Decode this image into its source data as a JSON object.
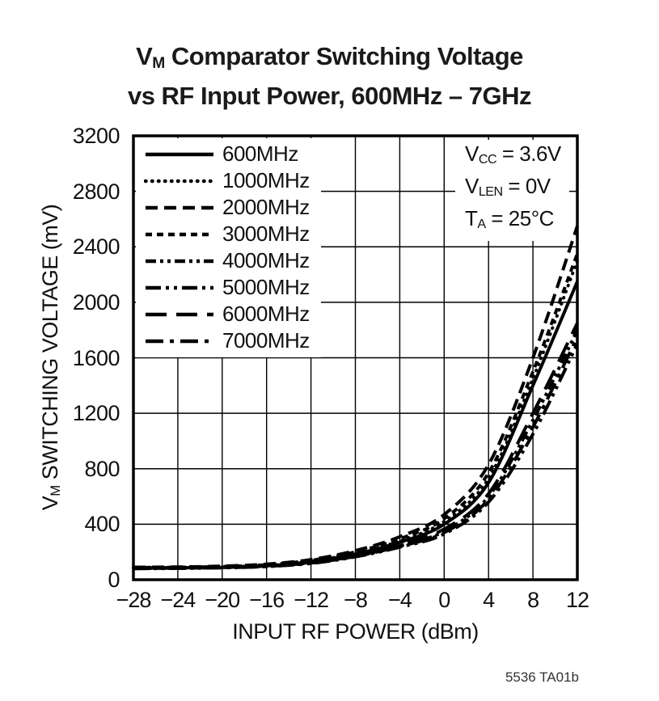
{
  "page": {
    "background": "#ffffff",
    "footer": "5536 TA01b"
  },
  "title": {
    "line1_base": "V",
    "line1_sub": "M",
    "line1_rest": " Comparator Switching Voltage",
    "line2": "vs RF Input Power, 600MHz – 7GHz"
  },
  "axes": {
    "y_label_base": "V",
    "y_label_sub": "M",
    "y_label_rest": " SWITCHING VOLTAGE (mV)",
    "x_label": "INPUT RF POWER (dBm)"
  },
  "annotations": [
    {
      "base": "V",
      "sub": "CC",
      "rest": " = 3.6V"
    },
    {
      "base": "V",
      "sub": "LEN",
      "rest": " = 0V"
    },
    {
      "base": "T",
      "sub": "A",
      "rest": " = 25°C"
    }
  ],
  "colors": {
    "ink": "#111111",
    "line": "#000000",
    "grid": "#000000"
  },
  "chart_data": {
    "type": "line",
    "title": "VM Comparator Switching Voltage vs RF Input Power, 600MHz – 7GHz",
    "xlabel": "INPUT RF POWER (dBm)",
    "ylabel": "VM SWITCHING VOLTAGE (mV)",
    "xlim": [
      -28,
      12
    ],
    "ylim": [
      0,
      3200
    ],
    "grid": true,
    "legend_position": "top-left-inside",
    "x_ticks": [
      -28,
      -24,
      -20,
      -16,
      -12,
      -8,
      -4,
      0,
      4,
      8,
      12
    ],
    "x_tick_labels": [
      "−28",
      "−24",
      "−20",
      "−16",
      "−12",
      "−8",
      "−4",
      "0",
      "4",
      "8",
      "12"
    ],
    "y_ticks": [
      0,
      400,
      800,
      1200,
      1600,
      2000,
      2400,
      2800,
      3200
    ],
    "y_tick_labels": [
      "0",
      "400",
      "800",
      "1200",
      "1600",
      "2000",
      "2400",
      "2800",
      "3200"
    ],
    "x": [
      -28,
      -24,
      -20,
      -16,
      -12,
      -8,
      -4,
      0,
      4,
      8,
      12
    ],
    "series": [
      {
        "name": "600MHz",
        "dash": "",
        "linecap": "butt",
        "values": [
          85,
          86,
          90,
          100,
          130,
          185,
          270,
          400,
          700,
          1400,
          2150
        ]
      },
      {
        "name": "1000MHz",
        "dash": "0.5 7.5",
        "linecap": "round",
        "values": [
          86,
          88,
          92,
          105,
          135,
          190,
          280,
          420,
          730,
          1450,
          2300
        ]
      },
      {
        "name": "2000MHz",
        "dash": "15 8",
        "linecap": "butt",
        "values": [
          90,
          92,
          98,
          112,
          145,
          210,
          310,
          470,
          830,
          1600,
          2550
        ]
      },
      {
        "name": "3000MHz",
        "dash": "8 6",
        "linecap": "butt",
        "values": [
          88,
          90,
          95,
          108,
          140,
          200,
          295,
          440,
          770,
          1500,
          2350
        ]
      },
      {
        "name": "4000MHz",
        "dash": "13 5 4 5 4 5",
        "linecap": "butt",
        "values": [
          82,
          84,
          88,
          98,
          122,
          170,
          245,
          350,
          600,
          1150,
          1800
        ]
      },
      {
        "name": "5000MHz",
        "dash": "19 6 4 6 4 6",
        "linecap": "butt",
        "values": [
          80,
          82,
          86,
          95,
          118,
          165,
          235,
          330,
          560,
          1050,
          1700
        ]
      },
      {
        "name": "6000MHz",
        "dash": "26 12",
        "linecap": "butt",
        "values": [
          83,
          85,
          89,
          100,
          125,
          175,
          255,
          365,
          620,
          1200,
          1850
        ]
      },
      {
        "name": "7000MHz",
        "dash": "22 8 5 8",
        "linecap": "butt",
        "values": [
          81,
          83,
          87,
          96,
          120,
          168,
          240,
          340,
          580,
          1100,
          1750
        ]
      }
    ]
  }
}
